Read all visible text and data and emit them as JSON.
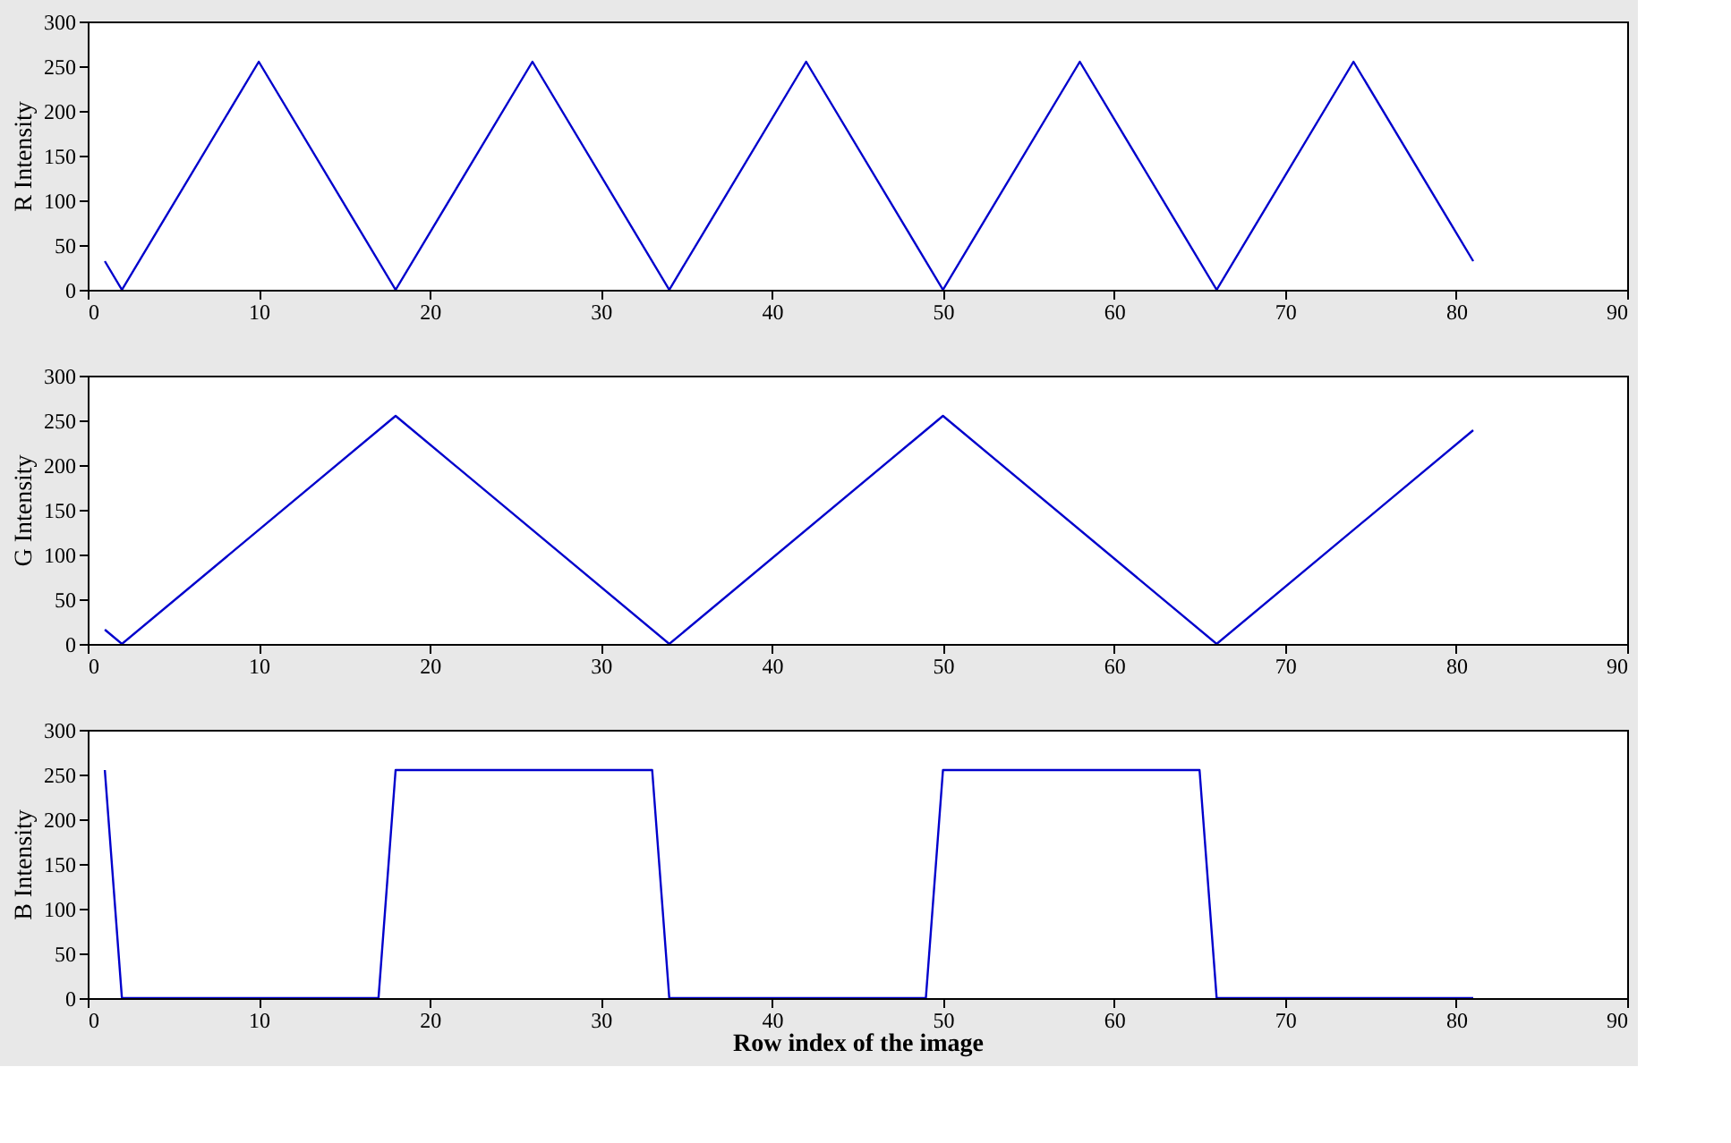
{
  "chart_data": [
    {
      "type": "line",
      "ylabel": "R Intensity",
      "xlim": [
        0,
        90
      ],
      "ylim": [
        0,
        300
      ],
      "xticks": [
        0,
        10,
        20,
        30,
        40,
        50,
        60,
        70,
        80,
        90
      ],
      "yticks": [
        0,
        50,
        100,
        150,
        200,
        250,
        300
      ],
      "grid": false,
      "series": [
        {
          "color": "#0000cc",
          "x": [
            1,
            2,
            10,
            18,
            26,
            34,
            42,
            50,
            58,
            66,
            74,
            81
          ],
          "values": [
            32,
            0,
            255,
            0,
            255,
            0,
            255,
            0,
            255,
            0,
            255,
            32
          ]
        }
      ]
    },
    {
      "type": "line",
      "ylabel": "G Intensity",
      "xlim": [
        0,
        90
      ],
      "ylim": [
        0,
        300
      ],
      "xticks": [
        0,
        10,
        20,
        30,
        40,
        50,
        60,
        70,
        80,
        90
      ],
      "yticks": [
        0,
        50,
        100,
        150,
        200,
        250,
        300
      ],
      "grid": false,
      "series": [
        {
          "color": "#0000cc",
          "x": [
            1,
            2,
            18,
            34,
            50,
            66,
            81
          ],
          "values": [
            16,
            0,
            255,
            0,
            255,
            0,
            239
          ]
        }
      ]
    },
    {
      "type": "line",
      "ylabel": "B Intensity",
      "xlabel": "Row index of the image",
      "xlim": [
        0,
        90
      ],
      "ylim": [
        0,
        300
      ],
      "xticks": [
        0,
        10,
        20,
        30,
        40,
        50,
        60,
        70,
        80,
        90
      ],
      "yticks": [
        0,
        50,
        100,
        150,
        200,
        250,
        300
      ],
      "grid": false,
      "series": [
        {
          "color": "#0000cc",
          "x": [
            1,
            2,
            17,
            18,
            33,
            34,
            49,
            50,
            65,
            66,
            81
          ],
          "values": [
            255,
            0,
            0,
            255,
            255,
            0,
            0,
            255,
            255,
            0,
            0
          ]
        }
      ]
    }
  ]
}
